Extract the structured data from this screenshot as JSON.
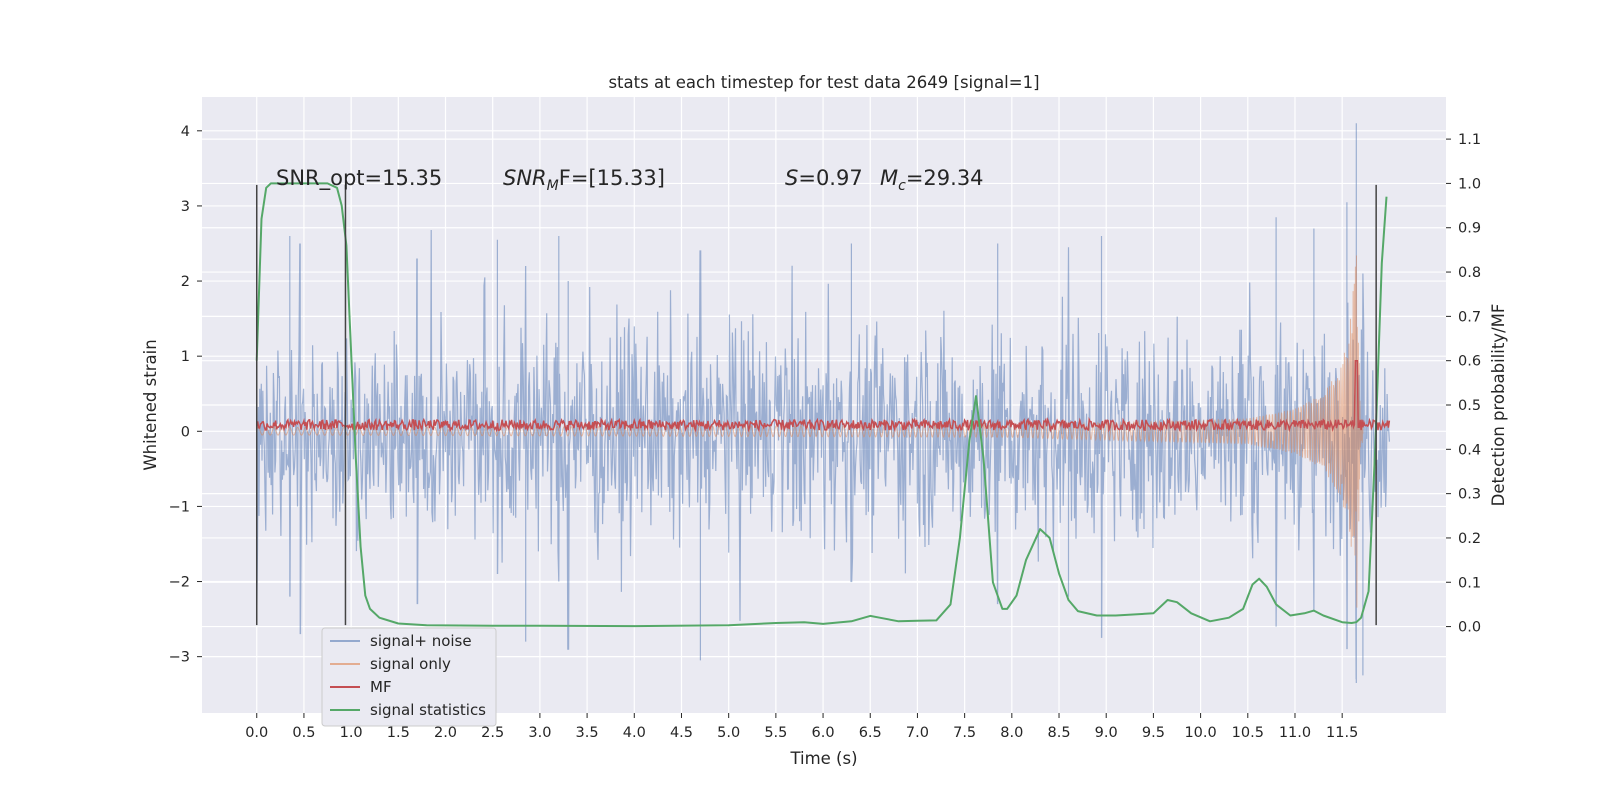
{
  "chart_data": {
    "type": "line",
    "title": "stats at each timestep for test data 2649 [signal=1]",
    "xlabel": "Time (s)",
    "ylabel_left": "Whitened strain",
    "ylabel_right": "Detection probability/MF",
    "xlim": [
      -0.58,
      12.6
    ],
    "ylim_left": [
      -3.75,
      4.45
    ],
    "ylim_right": [
      -0.195,
      1.195
    ],
    "x_ticks": [
      0.0,
      0.5,
      1.0,
      1.5,
      2.0,
      2.5,
      3.0,
      3.5,
      4.0,
      4.5,
      5.0,
      5.5,
      6.0,
      6.5,
      7.0,
      7.5,
      8.0,
      8.5,
      9.0,
      9.5,
      10.0,
      10.5,
      11.0,
      11.5
    ],
    "x_tick_labels": [
      "0.0",
      "0.5",
      "1.0",
      "1.5",
      "2.0",
      "2.5",
      "3.0",
      "3.5",
      "4.0",
      "4.5",
      "5.0",
      "5.5",
      "6.0",
      "6.5",
      "7.0",
      "7.5",
      "8.0",
      "8.5",
      "9.0",
      "9.5",
      "10.0",
      "10.5",
      "11.0",
      "11.5"
    ],
    "y_left_ticks": [
      -3,
      -2,
      -1,
      0,
      1,
      2,
      3,
      4
    ],
    "y_left_tick_labels": [
      "−3",
      "−2",
      "−1",
      "0",
      "1",
      "2",
      "3",
      "4"
    ],
    "y_right_ticks": [
      0.0,
      0.1,
      0.2,
      0.3,
      0.4,
      0.5,
      0.6,
      0.7,
      0.8,
      0.9,
      1.0,
      1.1
    ],
    "y_right_tick_labels": [
      "0.0",
      "0.1",
      "0.2",
      "0.3",
      "0.4",
      "0.5",
      "0.6",
      "0.7",
      "0.8",
      "0.9",
      "1.0",
      "1.1"
    ],
    "grid": true,
    "legend_position": "bottom-left",
    "annotations": [
      {
        "text": "SNR_opt=15.35",
        "x": 0.2,
        "y": 3.3
      },
      {
        "text": "SNR",
        "sub": "M",
        "rest": "F=[15.33]",
        "x": 2.6,
        "y": 3.3
      },
      {
        "text": "S",
        "rest": "=0.97",
        "x": 5.6,
        "y": 3.3
      },
      {
        "text": "M",
        "sub": "c",
        "rest": "=29.34",
        "x": 6.6,
        "y": 3.3
      }
    ],
    "vertical_markers": [
      {
        "x": 0.0,
        "y_range": [
          -2.58,
          3.28
        ]
      },
      {
        "x": 0.94,
        "y_range": [
          -2.58,
          3.28
        ]
      },
      {
        "x": 11.86,
        "y_range": [
          -2.58,
          3.28
        ]
      }
    ],
    "series": [
      {
        "name": "signal+ noise",
        "axis": "left",
        "color": "#4c72b0",
        "x_range": [
          0.0,
          12.0
        ],
        "envelope_peaks": [
          {
            "x": 0.0,
            "min": -2.58,
            "max": 2.3
          },
          {
            "x": 0.35,
            "min": -2.2,
            "max": 2.6
          },
          {
            "x": 0.46,
            "min": -2.7,
            "max": 2.5
          },
          {
            "x": 1.7,
            "min": -2.3,
            "max": 2.3
          },
          {
            "x": 2.55,
            "min": -1.9,
            "max": 2.55
          },
          {
            "x": 2.85,
            "min": -2.8,
            "max": 2.2
          },
          {
            "x": 3.2,
            "min": -2.0,
            "max": 2.6
          },
          {
            "x": 3.3,
            "min": -2.9,
            "max": 2.0
          },
          {
            "x": 4.7,
            "min": -3.05,
            "max": 2.4
          },
          {
            "x": 6.3,
            "min": -2.0,
            "max": 2.5
          },
          {
            "x": 7.85,
            "min": -2.3,
            "max": 2.5
          },
          {
            "x": 8.6,
            "min": -2.2,
            "max": 2.45
          },
          {
            "x": 8.95,
            "min": -2.75,
            "max": 2.6
          },
          {
            "x": 10.8,
            "min": -2.6,
            "max": 2.85
          },
          {
            "x": 11.2,
            "min": -2.4,
            "max": 2.7
          },
          {
            "x": 11.55,
            "min": -2.9,
            "max": 3.05
          },
          {
            "x": 11.65,
            "min": -3.35,
            "max": 4.1
          },
          {
            "x": 11.72,
            "min": -3.25,
            "max": 2.1
          }
        ],
        "typical_band": [
          -1.4,
          1.4
        ]
      },
      {
        "name": "signal only",
        "axis": "left",
        "color": "#dd8452",
        "x_range": [
          0.0,
          11.72
        ],
        "envelope": [
          {
            "x": 0.0,
            "amp": 0.05
          },
          {
            "x": 8.0,
            "amp": 0.08
          },
          {
            "x": 10.5,
            "amp": 0.17
          },
          {
            "x": 11.0,
            "amp": 0.3
          },
          {
            "x": 11.3,
            "amp": 0.5
          },
          {
            "x": 11.5,
            "amp": 0.9
          },
          {
            "x": 11.6,
            "amp": 1.6
          },
          {
            "x": 11.66,
            "amp": 2.6
          },
          {
            "x": 11.69,
            "amp": 1.2
          },
          {
            "x": 11.72,
            "amp": 0.05
          }
        ]
      },
      {
        "name": "MF",
        "axis": "right",
        "color": "#c44e52",
        "x_range": [
          0.0,
          12.0
        ],
        "baseline": 0.455,
        "noise_amplitude": 0.012,
        "spike": {
          "x": 11.65,
          "y": 0.6
        }
      },
      {
        "name": "signal statistics",
        "axis": "right",
        "color": "#55a868",
        "x": [
          0.0,
          0.05,
          0.1,
          0.15,
          0.2,
          0.3,
          0.5,
          0.6,
          0.75,
          0.85,
          0.9,
          0.95,
          1.0,
          1.05,
          1.1,
          1.15,
          1.2,
          1.3,
          1.5,
          1.8,
          2.5,
          3.0,
          4.0,
          5.0,
          5.5,
          5.8,
          6.0,
          6.3,
          6.5,
          6.6,
          6.8,
          7.0,
          7.2,
          7.35,
          7.45,
          7.55,
          7.62,
          7.7,
          7.8,
          7.9,
          7.95,
          8.05,
          8.15,
          8.3,
          8.4,
          8.5,
          8.6,
          8.7,
          8.9,
          9.1,
          9.5,
          9.65,
          9.75,
          9.9,
          10.1,
          10.3,
          10.45,
          10.55,
          10.62,
          10.7,
          10.8,
          10.95,
          11.1,
          11.2,
          11.3,
          11.5,
          11.6,
          11.65,
          11.7,
          11.78,
          11.85,
          11.92,
          11.97
        ],
        "y": [
          0.6,
          0.92,
          0.99,
          1.0,
          1.0,
          1.0,
          1.0,
          1.0,
          1.0,
          0.99,
          0.95,
          0.86,
          0.62,
          0.38,
          0.18,
          0.07,
          0.04,
          0.02,
          0.007,
          0.003,
          0.002,
          0.002,
          0.001,
          0.003,
          0.008,
          0.01,
          0.006,
          0.012,
          0.024,
          0.02,
          0.012,
          0.013,
          0.014,
          0.05,
          0.2,
          0.42,
          0.52,
          0.38,
          0.1,
          0.04,
          0.04,
          0.07,
          0.15,
          0.22,
          0.2,
          0.12,
          0.06,
          0.035,
          0.025,
          0.025,
          0.03,
          0.06,
          0.055,
          0.03,
          0.012,
          0.02,
          0.04,
          0.095,
          0.108,
          0.09,
          0.05,
          0.025,
          0.03,
          0.036,
          0.025,
          0.01,
          0.008,
          0.01,
          0.02,
          0.08,
          0.4,
          0.82,
          0.97
        ]
      }
    ],
    "legend": [
      "signal+ noise",
      "signal only",
      "MF",
      "signal statistics"
    ]
  }
}
